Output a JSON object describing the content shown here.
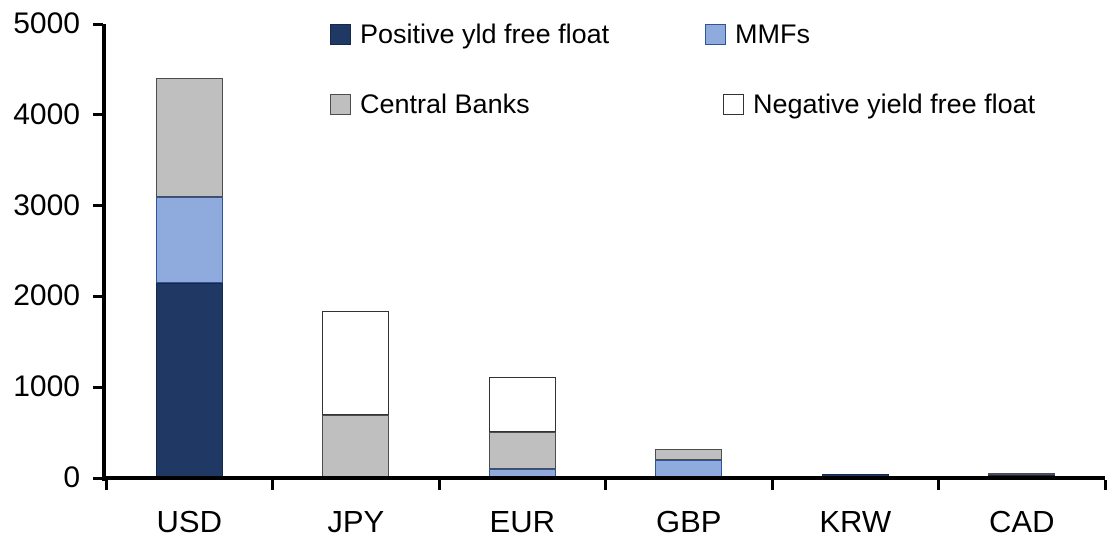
{
  "chart_data": {
    "type": "bar",
    "stacked": true,
    "title": "",
    "xlabel": "",
    "ylabel": "",
    "categories": [
      "USD",
      "JPY",
      "EUR",
      "GBP",
      "KRW",
      "CAD"
    ],
    "series": [
      {
        "name": "Positive yld free float",
        "color": "#1F3864",
        "border_color": "#17294A",
        "values": [
          2150,
          0,
          0,
          0,
          40,
          30
        ]
      },
      {
        "name": "MMFs",
        "color": "#8FAADC",
        "border_color": "#2F5597",
        "values": [
          950,
          0,
          100,
          200,
          0,
          0
        ]
      },
      {
        "name": "Central Banks",
        "color": "#BFBFBF",
        "border_color": "#4D4D4D",
        "values": [
          1300,
          690,
          410,
          120,
          0,
          30
        ]
      },
      {
        "name": "Negative yield free float",
        "color": "#FFFFFF",
        "border_color": "#333333",
        "values": [
          0,
          1150,
          600,
          0,
          0,
          0
        ]
      }
    ],
    "totals": [
      4400,
      1840,
      1110,
      320,
      40,
      60
    ],
    "ylim": [
      0,
      5000
    ],
    "ytick_interval": 1000,
    "ytick_labels": [
      "0",
      "1000",
      "2000",
      "3000",
      "4000",
      "5000"
    ],
    "grid": false,
    "legend_position": "top",
    "axis_color": "#000000",
    "background_color": "#FFFFFF"
  }
}
